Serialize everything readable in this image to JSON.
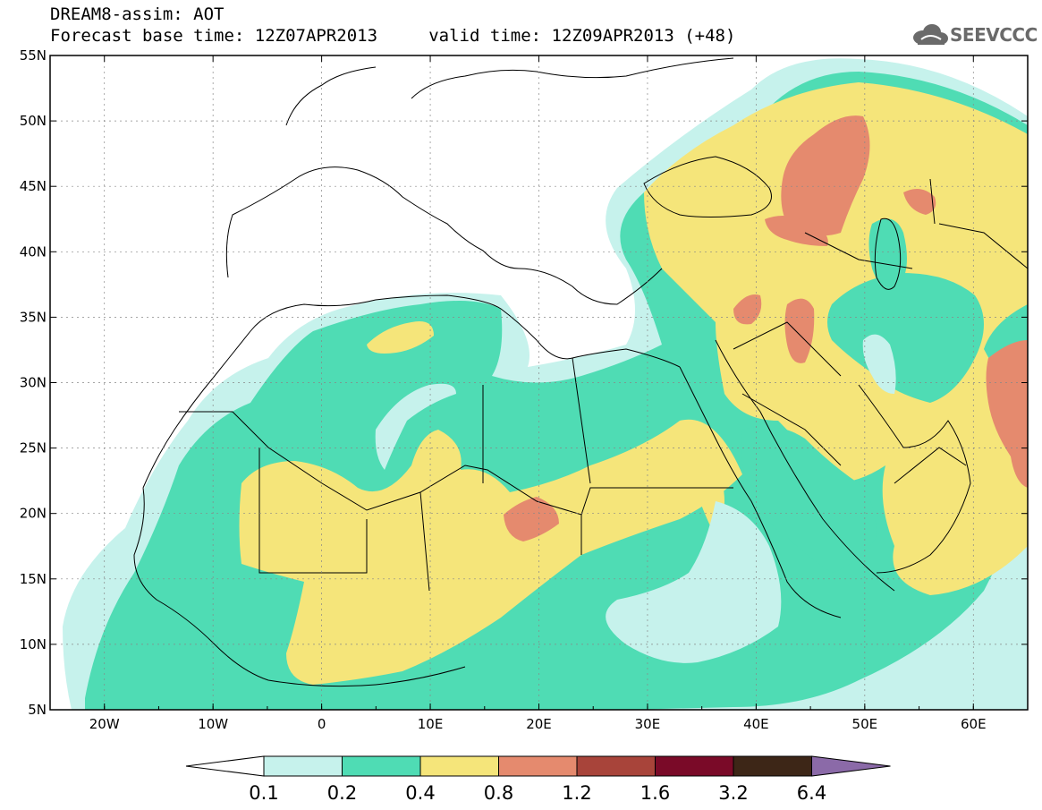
{
  "header": {
    "line1": "DREAM8-assim: AOT",
    "line2": "Forecast base time: 12Z07APR2013     valid time: 12Z09APR2013 (+48)"
  },
  "logo": {
    "icon": "cloud-icon",
    "text": "SEEVCCC"
  },
  "map": {
    "lat_labels": [
      "55N",
      "50N",
      "45N",
      "40N",
      "35N",
      "30N",
      "25N",
      "20N",
      "15N",
      "10N",
      "5N"
    ],
    "lon_labels": [
      "20W",
      "10W",
      "0",
      "10E",
      "20E",
      "30E",
      "40E",
      "50E",
      "60E"
    ],
    "extent": {
      "lon_min": -25,
      "lon_max": 65,
      "lat_min": 5,
      "lat_max": 55
    }
  },
  "colorbar": {
    "labels": [
      "0.1",
      "0.2",
      "0.4",
      "0.8",
      "1.2",
      "1.6",
      "3.2",
      "6.4"
    ],
    "colors": [
      "#ffffff",
      "#c6f2ec",
      "#4fdcb4",
      "#f5e57a",
      "#e58a6e",
      "#a8443a",
      "#7a0a28",
      "#3d2617",
      "#8b6aa8"
    ]
  },
  "field_colors": {
    "c01": "#c6f2ec",
    "c02": "#4fdcb4",
    "c04": "#f5e57a",
    "c08": "#e58a6e",
    "c12": "#a8443a"
  }
}
